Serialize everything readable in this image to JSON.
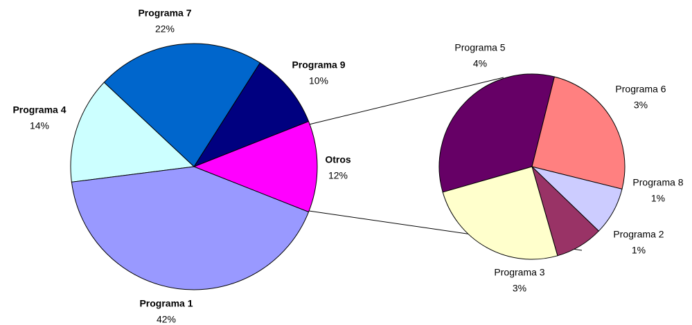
{
  "chart_data": [
    {
      "type": "pie",
      "categories": [
        "Otros",
        "Programa 9",
        "Programa 7",
        "Programa 4",
        "Programa 1"
      ],
      "values": [
        12,
        10,
        22,
        14,
        42
      ],
      "value_labels": [
        "12%",
        "10%",
        "22%",
        "14%",
        "42%"
      ],
      "colors": [
        "#ff00ff",
        "#000080",
        "#0066cc",
        "#ccffff",
        "#9999ff"
      ]
    },
    {
      "type": "pie",
      "categories": [
        "Programa 5",
        "Programa 6",
        "Programa 8",
        "Programa 2",
        "Programa 3"
      ],
      "values": [
        4,
        3,
        1,
        1,
        3
      ],
      "value_labels": [
        "4%",
        "3%",
        "1%",
        "1%",
        "3%"
      ],
      "colors": [
        "#660066",
        "#ff8080",
        "#ccccff",
        "#993366",
        "#ffffcc"
      ]
    }
  ]
}
